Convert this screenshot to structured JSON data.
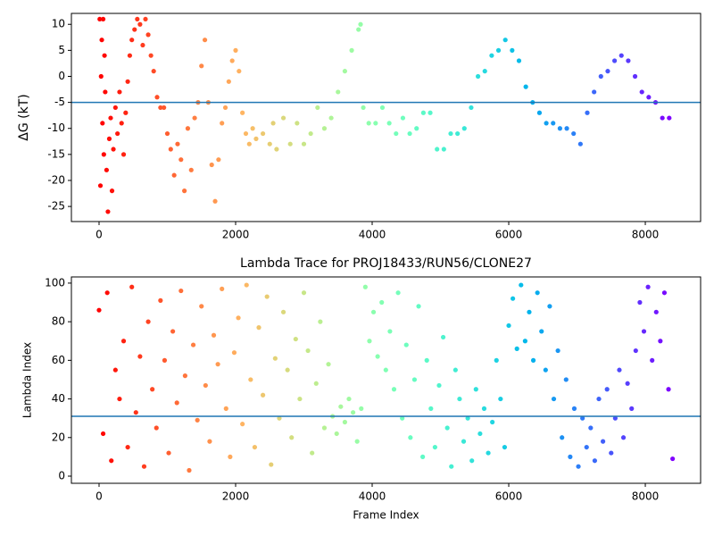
{
  "chart_data": [
    {
      "type": "scatter",
      "ylabel": "ΔG (kT)",
      "colormap": "rainbow_r",
      "hline": -5,
      "hline_color": "#1f77b4",
      "xlim": [
        -405,
        8810
      ],
      "ylim": [
        -27.9,
        12.1
      ],
      "xticks": [
        0,
        2000,
        4000,
        6000,
        8000
      ],
      "yticks": [
        -25,
        -20,
        -15,
        -10,
        -5,
        0,
        5,
        10
      ],
      "x": [
        10,
        20,
        30,
        40,
        50,
        60,
        70,
        80,
        90,
        110,
        130,
        150,
        170,
        190,
        210,
        240,
        270,
        300,
        330,
        360,
        390,
        420,
        450,
        480,
        520,
        560,
        600,
        640,
        680,
        720,
        760,
        800,
        850,
        900,
        950,
        1000,
        1050,
        1100,
        1150,
        1200,
        1250,
        1300,
        1350,
        1400,
        1450,
        1500,
        1550,
        1600,
        1650,
        1700,
        1750,
        1800,
        1850,
        1900,
        1950,
        2000,
        2050,
        2100,
        2150,
        2200,
        2250,
        2300,
        2400,
        2500,
        2550,
        2600,
        2700,
        2800,
        2900,
        3000,
        3100,
        3200,
        3300,
        3400,
        3500,
        3600,
        3700,
        3800,
        3830,
        3870,
        3950,
        4050,
        4150,
        4250,
        4350,
        4450,
        4550,
        4650,
        4750,
        4850,
        4950,
        5050,
        5150,
        5250,
        5350,
        5450,
        5550,
        5650,
        5750,
        5850,
        5950,
        6050,
        6150,
        6250,
        6350,
        6450,
        6550,
        6650,
        6750,
        6850,
        6950,
        7050,
        7150,
        7250,
        7350,
        7450,
        7550,
        7650,
        7750,
        7850,
        7950,
        8050,
        8150,
        8250,
        8350
      ],
      "values": [
        11,
        -21,
        0,
        7,
        -9,
        11,
        -15,
        4,
        -3,
        -18,
        -26,
        -12,
        -8,
        -22,
        -14,
        -6,
        -11,
        -3,
        -9,
        -15,
        -7,
        -1,
        4,
        7,
        9,
        11,
        10,
        6,
        11,
        8,
        4,
        1,
        -4,
        -6,
        -6,
        -11,
        -14,
        -19,
        -13,
        -16,
        -22,
        -10,
        -18,
        -8,
        -5,
        2,
        7,
        -5,
        -17,
        -24,
        -16,
        -9,
        -6,
        -1,
        3,
        5,
        1,
        -7,
        -11,
        -13,
        -10,
        -12,
        -11,
        -13,
        -9,
        -14,
        -8,
        -13,
        -9,
        -13,
        -11,
        -6,
        -10,
        -8,
        -3,
        1,
        5,
        9,
        10,
        -6,
        -9,
        -9,
        -6,
        -9,
        -11,
        -8,
        -11,
        -10,
        -7,
        -7,
        -14,
        -14,
        -11,
        -11,
        -10,
        -6,
        0,
        1,
        4,
        5,
        7,
        5,
        3,
        -2,
        -5,
        -7,
        -9,
        -9,
        -10,
        -10,
        -11,
        -13,
        -7,
        -3,
        0,
        1,
        3,
        4,
        3,
        0,
        -3,
        -4,
        -5,
        -8,
        -8
      ]
    },
    {
      "type": "scatter",
      "title": "Lambda Trace for PROJ18433/RUN56/CLONE27",
      "xlabel": "Frame Index",
      "ylabel": "Lambda Index",
      "colormap": "rainbow_r",
      "hline": 31,
      "hline_color": "#1f77b4",
      "xlim": [
        -405,
        8810
      ],
      "ylim": [
        -3.7,
        103.2
      ],
      "xticks": [
        0,
        2000,
        4000,
        6000,
        8000
      ],
      "yticks": [
        0,
        20,
        40,
        60,
        80,
        100
      ],
      "x": [
        0,
        60,
        120,
        180,
        240,
        300,
        360,
        420,
        480,
        540,
        600,
        660,
        720,
        780,
        840,
        900,
        960,
        1020,
        1080,
        1140,
        1200,
        1260,
        1320,
        1380,
        1440,
        1500,
        1560,
        1620,
        1680,
        1740,
        1800,
        1860,
        1920,
        1980,
        2040,
        2100,
        2160,
        2220,
        2280,
        2340,
        2400,
        2460,
        2520,
        2580,
        2640,
        2700,
        2760,
        2820,
        2880,
        2940,
        3000,
        3060,
        3120,
        3180,
        3240,
        3300,
        3360,
        3420,
        3480,
        3540,
        3600,
        3660,
        3720,
        3780,
        3840,
        3900,
        3960,
        4020,
        4080,
        4140,
        4200,
        4260,
        4320,
        4380,
        4440,
        4500,
        4560,
        4620,
        4680,
        4740,
        4800,
        4860,
        4920,
        4980,
        5040,
        5100,
        5160,
        5220,
        5280,
        5340,
        5400,
        5460,
        5520,
        5580,
        5640,
        5700,
        5760,
        5820,
        5880,
        5940,
        6000,
        6060,
        6120,
        6180,
        6240,
        6300,
        6360,
        6420,
        6480,
        6540,
        6600,
        6660,
        6720,
        6780,
        6840,
        6900,
        6960,
        7020,
        7080,
        7140,
        7200,
        7260,
        7320,
        7380,
        7440,
        7500,
        7560,
        7620,
        7680,
        7740,
        7800,
        7860,
        7920,
        7980,
        8040,
        8100,
        8160,
        8220,
        8280,
        8340,
        8400
      ],
      "values": [
        86,
        22,
        95,
        8,
        55,
        40,
        70,
        15,
        98,
        33,
        62,
        5,
        80,
        45,
        25,
        91,
        60,
        12,
        75,
        38,
        96,
        52,
        3,
        68,
        29,
        88,
        47,
        18,
        73,
        58,
        97,
        35,
        10,
        64,
        82,
        27,
        99,
        50,
        15,
        77,
        42,
        93,
        6,
        61,
        30,
        85,
        55,
        20,
        71,
        40,
        95,
        65,
        12,
        48,
        80,
        25,
        58,
        31,
        22,
        36,
        28,
        40,
        33,
        18,
        35,
        98,
        70,
        85,
        62,
        90,
        55,
        75,
        45,
        95,
        30,
        68,
        20,
        50,
        88,
        10,
        60,
        35,
        15,
        47,
        72,
        25,
        5,
        55,
        40,
        18,
        30,
        8,
        45,
        22,
        35,
        12,
        28,
        60,
        40,
        15,
        78,
        92,
        66,
        99,
        70,
        85,
        60,
        95,
        75,
        55,
        88,
        40,
        65,
        20,
        50,
        10,
        35,
        5,
        30,
        15,
        25,
        8,
        40,
        18,
        45,
        12,
        30,
        55,
        20,
        48,
        35,
        65,
        90,
        75,
        98,
        60,
        85,
        70,
        95,
        45,
        9
      ]
    }
  ]
}
